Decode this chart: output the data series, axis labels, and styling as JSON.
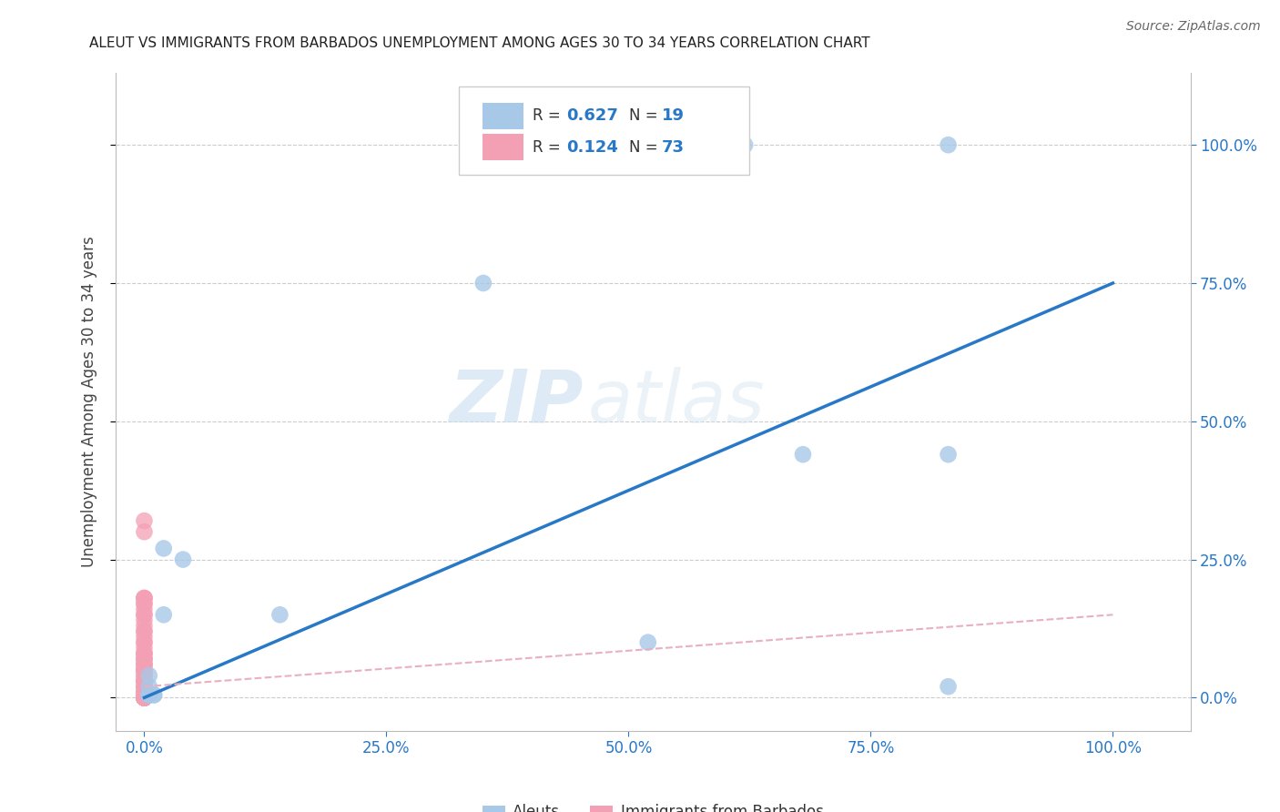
{
  "title": "ALEUT VS IMMIGRANTS FROM BARBADOS UNEMPLOYMENT AMONG AGES 30 TO 34 YEARS CORRELATION CHART",
  "source": "Source: ZipAtlas.com",
  "ylabel": "Unemployment Among Ages 30 to 34 years",
  "ticks": [
    0.0,
    0.25,
    0.5,
    0.75,
    1.0
  ],
  "tick_labels": [
    "0.0%",
    "25.0%",
    "50.0%",
    "75.0%",
    "100.0%"
  ],
  "xlim": [
    -0.03,
    1.08
  ],
  "ylim": [
    -0.06,
    1.13
  ],
  "aleuts_R": 0.627,
  "aleuts_N": 19,
  "barbados_R": 0.124,
  "barbados_N": 73,
  "aleuts_color": "#a8c8e8",
  "barbados_color": "#f4a0b4",
  "aleuts_line_color": "#2878c8",
  "barbados_line_color": "#e8b0c0",
  "legend_label_aleuts": "Aleuts",
  "legend_label_barbados": "Immigrants from Barbados",
  "watermark_zip": "ZIP",
  "watermark_atlas": "atlas",
  "aleuts_x": [
    0.62,
    0.83,
    0.04,
    0.02,
    0.005,
    0.005,
    0.005,
    0.005,
    0.01,
    0.01,
    0.005,
    0.02,
    0.14,
    0.52,
    0.68,
    0.83,
    0.35,
    0.005,
    0.83
  ],
  "aleuts_y": [
    1.0,
    1.0,
    0.25,
    0.27,
    0.005,
    0.005,
    0.005,
    0.005,
    0.005,
    0.005,
    0.04,
    0.15,
    0.15,
    0.1,
    0.44,
    0.44,
    0.75,
    0.02,
    0.02
  ],
  "barbados_x": [
    0.0,
    0.0,
    0.0,
    0.0,
    0.0,
    0.0,
    0.0,
    0.0,
    0.0,
    0.0,
    0.0,
    0.0,
    0.0,
    0.0,
    0.0,
    0.0,
    0.0,
    0.0,
    0.0,
    0.0,
    0.0,
    0.0,
    0.0,
    0.0,
    0.0,
    0.0,
    0.0,
    0.0,
    0.0,
    0.0,
    0.0,
    0.0,
    0.0,
    0.0,
    0.0,
    0.0,
    0.0,
    0.0,
    0.0,
    0.0,
    0.0,
    0.0,
    0.0,
    0.0,
    0.0,
    0.0,
    0.0,
    0.0,
    0.0,
    0.0,
    0.0,
    0.0,
    0.0,
    0.0,
    0.0,
    0.0,
    0.0,
    0.0,
    0.0,
    0.0,
    0.0,
    0.0,
    0.0,
    0.0,
    0.0,
    0.0,
    0.0,
    0.0,
    0.0,
    0.0,
    0.0,
    0.0,
    0.0
  ],
  "barbados_y": [
    0.0,
    0.0,
    0.0,
    0.0,
    0.0,
    0.0,
    0.0,
    0.0,
    0.0,
    0.0,
    0.0,
    0.0,
    0.0,
    0.0,
    0.0,
    0.0,
    0.0,
    0.0,
    0.0,
    0.0,
    0.0,
    0.0,
    0.0,
    0.0,
    0.0,
    0.0,
    0.0,
    0.0,
    0.0,
    0.0,
    0.01,
    0.01,
    0.01,
    0.02,
    0.02,
    0.02,
    0.03,
    0.03,
    0.03,
    0.03,
    0.04,
    0.04,
    0.05,
    0.05,
    0.05,
    0.05,
    0.06,
    0.06,
    0.06,
    0.07,
    0.07,
    0.07,
    0.08,
    0.08,
    0.08,
    0.09,
    0.1,
    0.1,
    0.11,
    0.12,
    0.12,
    0.13,
    0.14,
    0.15,
    0.15,
    0.16,
    0.17,
    0.17,
    0.18,
    0.18,
    0.18,
    0.3,
    0.32
  ],
  "aleuts_line_x": [
    0.0,
    1.0
  ],
  "aleuts_line_y": [
    0.0,
    0.75
  ],
  "barbados_line_x": [
    0.0,
    1.0
  ],
  "barbados_line_y": [
    0.02,
    0.15
  ],
  "background_color": "#ffffff",
  "grid_color": "#cccccc",
  "tick_color": "#2878c8",
  "title_color": "#222222",
  "label_color": "#444444"
}
